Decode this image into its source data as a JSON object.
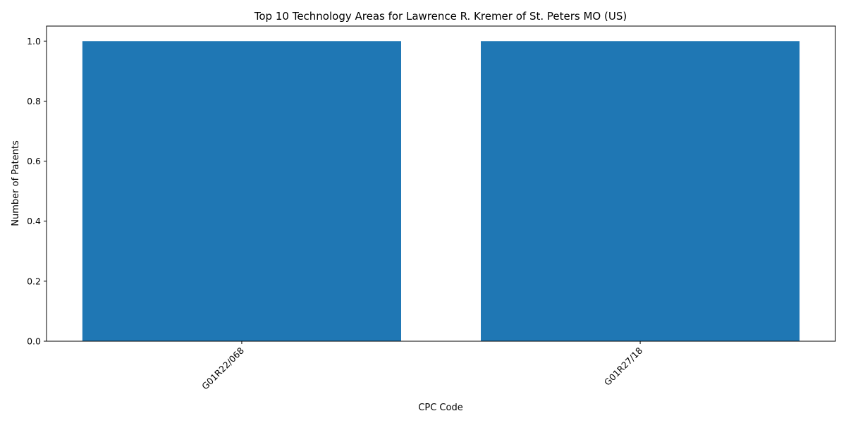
{
  "chart_data": {
    "type": "bar",
    "title": "Top 10 Technology Areas for Lawrence R. Kremer of St. Peters MO (US)",
    "xlabel": "CPC Code",
    "ylabel": "Number of Patents",
    "categories": [
      "G01R22/068",
      "G01R27/18"
    ],
    "values": [
      1,
      1
    ],
    "ylim": [
      0,
      1.05
    ],
    "yticks": [
      0.0,
      0.2,
      0.4,
      0.6,
      0.8,
      1.0
    ],
    "ytick_labels": [
      "0.0",
      "0.2",
      "0.4",
      "0.6",
      "0.8",
      "1.0"
    ],
    "bar_color": "#1f77b4",
    "grid": false,
    "legend": "none"
  }
}
